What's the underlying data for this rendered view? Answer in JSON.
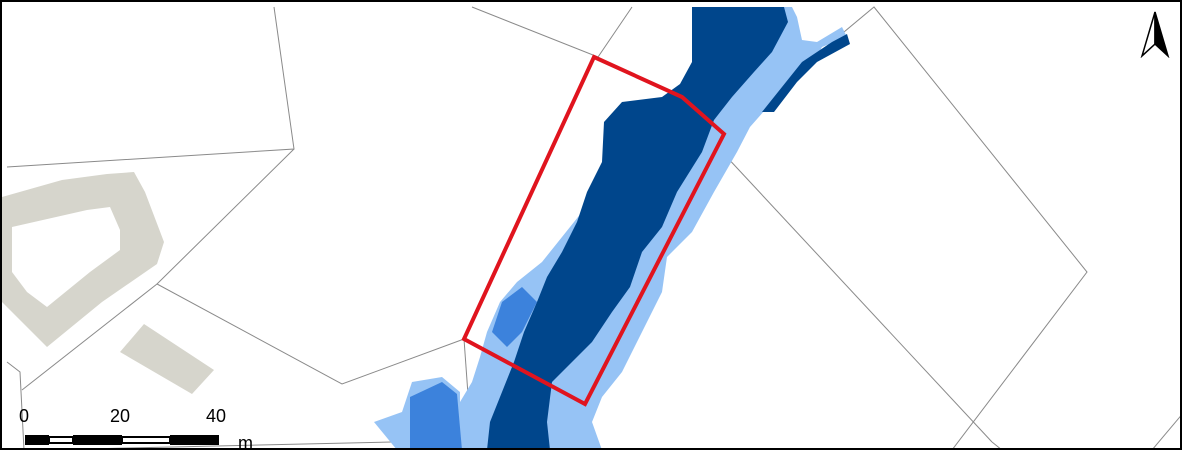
{
  "map": {
    "colors": {
      "deep_water": "#00468C",
      "medium_water": "#3C82DC",
      "shallow_water": "#96C3F5",
      "building": "#D6D5CC",
      "parcel_line": "#8A8A8A",
      "study_area": "#E0141E"
    }
  },
  "scale_bar": {
    "ticks": [
      "0",
      "20",
      "40"
    ],
    "unit": "m"
  },
  "north_arrow": {
    "icon": "north-arrow-icon"
  }
}
